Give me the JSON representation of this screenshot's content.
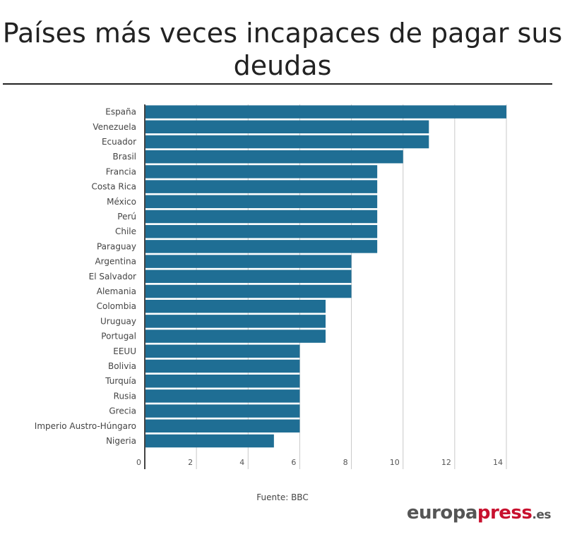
{
  "title": "Países más veces incapaces de pagar sus deudas",
  "source": "Fuente: BBC",
  "brand": {
    "part1": "europa",
    "part2": "press",
    "part3": ".es"
  },
  "colors": {
    "bar": "#1f6e94",
    "grid": "#c8c8c8",
    "axis": "#444444",
    "brand_accent": "#c8102e"
  },
  "chart_data": {
    "type": "bar",
    "orientation": "horizontal",
    "categories": [
      "España",
      "Venezuela",
      "Ecuador",
      "Brasil",
      "Francia",
      "Costa Rica",
      "México",
      "Perú",
      "Chile",
      "Paraguay",
      "Argentina",
      "El Salvador",
      "Alemania",
      "Colombia",
      "Uruguay",
      "Portugal",
      "EEUU",
      "Bolivia",
      "Turquía",
      "Rusia",
      "Grecia",
      "Imperio Austro-Húngaro",
      "Nigeria"
    ],
    "values": [
      14,
      11,
      11,
      10,
      9,
      9,
      9,
      9,
      9,
      9,
      8,
      8,
      8,
      7,
      7,
      7,
      6,
      6,
      6,
      6,
      6,
      6,
      5
    ],
    "xlim": [
      0,
      14
    ],
    "xticks": [
      0,
      2,
      4,
      6,
      8,
      10,
      12,
      14
    ],
    "grid": true,
    "legend": "none"
  }
}
